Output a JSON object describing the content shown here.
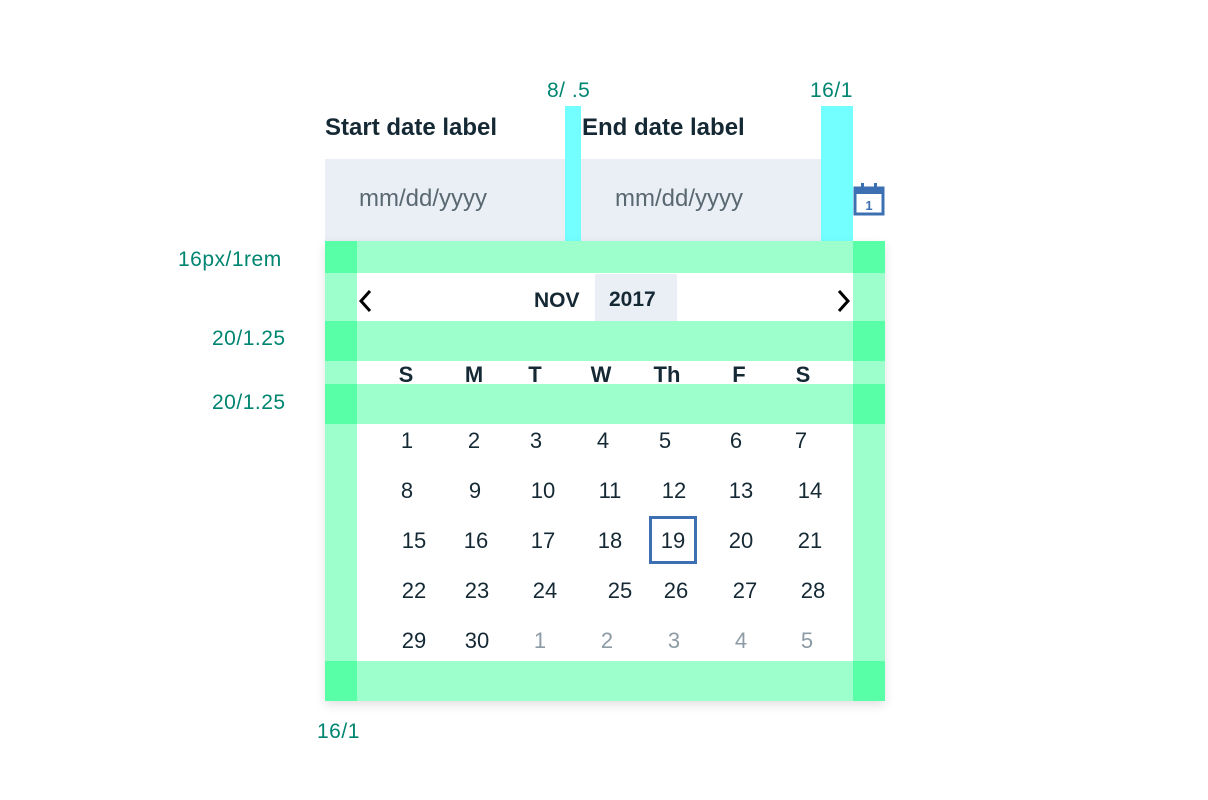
{
  "annotations": {
    "range_gap": "8/ .5",
    "icon_gap": "16/1",
    "top_padding": "16px/1rem",
    "header_gap": "20/1.25",
    "weekday_gap": "20/1.25",
    "side_padding": "16/1"
  },
  "start_date": {
    "label": "Start date label",
    "placeholder": "mm/dd/yyyy"
  },
  "end_date": {
    "label": "End date label",
    "placeholder": "mm/dd/yyyy"
  },
  "calendar_icon": {
    "name": "calendar-icon",
    "glyph": "1",
    "color": "#3d70b2"
  },
  "calendar": {
    "month": "NOV",
    "year": "2017",
    "prev_icon": "chevron-left-icon",
    "next_icon": "chevron-right-icon",
    "weekdays": [
      "S",
      "M",
      "T",
      "W",
      "Th",
      "F",
      "S"
    ],
    "weeks": [
      [
        "1",
        "2",
        "3",
        "4",
        "5",
        "6",
        "7"
      ],
      [
        "8",
        "9",
        "10",
        "11",
        "12",
        "13",
        "14"
      ],
      [
        "15",
        "16",
        "17",
        "18",
        "19",
        "20",
        "21"
      ],
      [
        "22",
        "23",
        "24",
        "25",
        "26",
        "27",
        "28"
      ],
      [
        "29",
        "30",
        "1",
        "2",
        "3",
        "4",
        "5"
      ]
    ],
    "selected_day": "19",
    "next_month_days": [
      "1",
      "2",
      "3",
      "4",
      "5"
    ]
  },
  "colors": {
    "field_bg": "#eaeef5",
    "spacing_cyan": "#73ffff",
    "spacing_green": "#9cffcc",
    "spacing_green_dark": "#58ffa6",
    "selected_border": "#3d70b2",
    "annotation_text": "#008571"
  }
}
